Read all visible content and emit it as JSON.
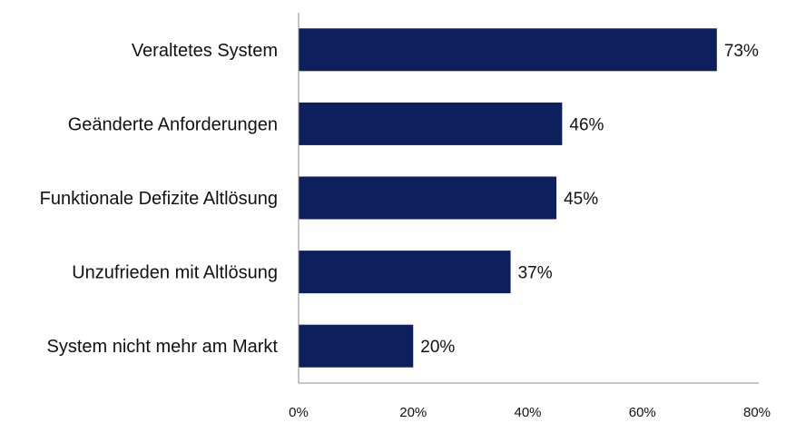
{
  "chart_data": {
    "type": "bar",
    "orientation": "horizontal",
    "categories": [
      "Veraltetes System",
      "Geänderte Anforderungen",
      "Funktionale Defizite Altlösung",
      "Unzufrieden mit Altlösung",
      "System nicht mehr am Markt"
    ],
    "values": [
      73,
      46,
      45,
      37,
      20
    ],
    "value_labels": [
      "73%",
      "46%",
      "45%",
      "37%",
      "20%"
    ],
    "xlim": [
      0,
      80
    ],
    "xticks": [
      0,
      20,
      40,
      60,
      80
    ],
    "xtick_labels": [
      "0%",
      "20%",
      "40%",
      "60%",
      "80%"
    ],
    "bar_color": "#0d1f5c",
    "grid": false,
    "title": "",
    "xlabel": "",
    "ylabel": ""
  }
}
